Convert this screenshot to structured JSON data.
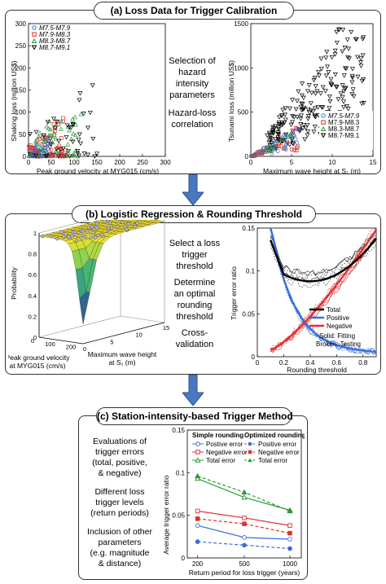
{
  "panel_a": {
    "title": "(a)  Loss Data for Trigger Calibration",
    "middle_text": [
      "Selection of",
      "hazard",
      "intensity",
      "parameters",
      "Hazard-loss",
      "correlation"
    ],
    "left_chart": {
      "ylabel": "Shaking loss (million US$)",
      "xlabel": "Peak ground velocity at MYG015 (cm/s)",
      "xticks": [
        "0",
        "50",
        "100",
        "150",
        "200",
        "250",
        "300"
      ],
      "yticks": [
        "0",
        "50",
        "100",
        "150",
        "200",
        "250",
        "300"
      ],
      "legend": [
        "M7.5-M7.9",
        "M7.9-M8.3",
        "M8.3-M8.7",
        "M8.7-M9.1"
      ]
    },
    "right_chart": {
      "ylabel": "Tsunami loss (million US$)",
      "xlabel": "Maximum wave height at S₁ (m)",
      "xticks": [
        "0",
        "5",
        "10",
        "15"
      ],
      "yticks": [
        "0",
        "500",
        "1000",
        "1500"
      ],
      "legend": [
        "M7.5-M7.9",
        "M7.9-M8.3",
        "M8.3-M8.7",
        "M8.7-M9.1"
      ]
    }
  },
  "panel_b": {
    "title": "(b)  Logistic Regression & Rounding Threshold",
    "middle_text": [
      "Select a loss",
      "trigger",
      "threshold",
      "Determine",
      "an optimal",
      "rounding",
      "threshold",
      "Cross-",
      "validation"
    ],
    "surface": {
      "zlabel": "Probability",
      "zticks": [
        "0",
        "0.2",
        "0.4",
        "0.6",
        "0.8",
        "1"
      ],
      "xlabel": "Peak ground velocity at MYG015 (cm/s)",
      "xticks": [
        "0",
        "100",
        "200"
      ],
      "ylabel": "Maximum wave height at S₁ (m)",
      "yticks": [
        "0",
        "5",
        "10",
        "15"
      ]
    },
    "line_chart": {
      "ylabel": "Trigger error ratio",
      "xlabel": "Rounding threshold",
      "xticks": [
        "0",
        "0.2",
        "0.4",
        "0.6",
        "0.8"
      ],
      "yticks": [
        "0",
        "0.05",
        "0.1",
        "0.15"
      ],
      "legend": [
        "Total",
        "Positive",
        "Negative"
      ],
      "note": [
        "Solid: Fitting",
        "Broken: Testing"
      ]
    }
  },
  "panel_c": {
    "title": "(c)  Station-intensity-based Trigger Method",
    "left_text": [
      "Evaluations of",
      "trigger errors",
      "(total, positive,",
      "& negative)",
      "Different loss",
      "trigger levels",
      "(return periods)",
      "Inclusion of other",
      "parameters",
      "(e.g. magnitude",
      "& distance)"
    ],
    "legend_simple_title": "Simple rounding",
    "legend_opt_title": "Optimized rounding",
    "legend_items": [
      "Postive error",
      "Negative error",
      "Total error",
      "Positive error",
      "Negative error",
      "Total error"
    ],
    "ylabel": "Average trigger error ratio",
    "xlabel": "Return period for loss trigger (years)",
    "yticks": [
      "0",
      "0.05",
      "0.1",
      "0.15"
    ],
    "xticks": [
      "200",
      "500",
      "1000"
    ]
  },
  "chart_data": {
    "type": "line",
    "categories": [
      "200",
      "500",
      "1000"
    ],
    "ylabel": "Average trigger error ratio",
    "xlabel": "Return period for loss trigger (years)",
    "ylim": [
      0,
      0.15
    ],
    "series": [
      {
        "name": "Postive error",
        "values": [
          0.038,
          0.024,
          0.022
        ],
        "color": "#3a6fd8",
        "style": "solid"
      },
      {
        "name": "Negative error",
        "values": [
          0.055,
          0.047,
          0.038
        ],
        "color": "#e03030",
        "style": "solid"
      },
      {
        "name": "Total error",
        "values": [
          0.093,
          0.071,
          0.056
        ],
        "color": "#2a9a3a",
        "style": "solid"
      },
      {
        "name": "Positive error",
        "values": [
          0.019,
          0.015,
          0.011
        ],
        "color": "#3a6fd8",
        "style": "dashed"
      },
      {
        "name": "Negative error",
        "values": [
          0.046,
          0.04,
          0.029
        ],
        "color": "#e03030",
        "style": "dashed"
      },
      {
        "name": "Total error",
        "values": [
          0.096,
          0.077,
          0.055
        ],
        "color": "#2a9a3a",
        "style": "dashed"
      }
    ]
  },
  "colors": {
    "blue": "#3a6fd8",
    "red": "#e03030",
    "green": "#2a9a3a",
    "arrow": "#4a78c0"
  }
}
